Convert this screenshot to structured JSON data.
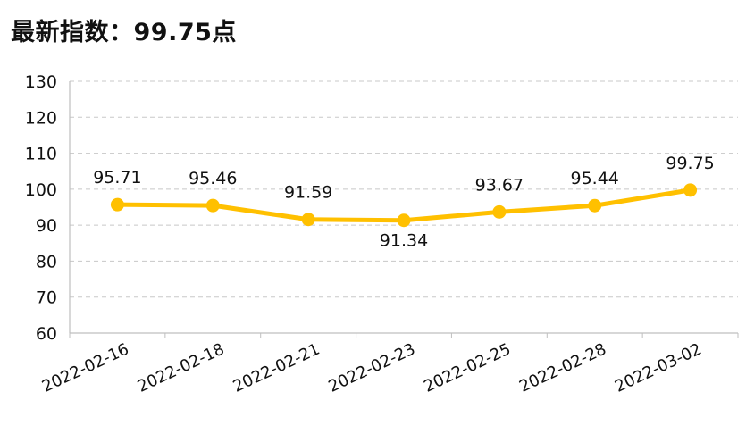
{
  "headline": {
    "label": "最新指数：",
    "value": "99.75",
    "unit": "点"
  },
  "chart_data": {
    "type": "line",
    "title": "",
    "xlabel": "",
    "ylabel": "",
    "x": [
      "2022-02-16",
      "2022-02-18",
      "2022-02-21",
      "2022-02-23",
      "2022-02-25",
      "2022-02-28",
      "2022-03-02"
    ],
    "series": [
      {
        "values": [
          95.71,
          95.46,
          91.59,
          91.34,
          93.67,
          95.44,
          99.75
        ]
      }
    ],
    "data_labels": [
      "95.71",
      "95.46",
      "91.59",
      "91.34",
      "93.67",
      "95.44",
      "99.75"
    ],
    "ylim": [
      60,
      130
    ],
    "yticks": [
      60,
      70,
      80,
      90,
      100,
      110,
      120,
      130
    ],
    "grid": "horizontal dashed",
    "legend": "none",
    "colors": {
      "line": "#FFC000",
      "grid": "#C8C8C8",
      "axis": "#BFBFBF"
    }
  }
}
